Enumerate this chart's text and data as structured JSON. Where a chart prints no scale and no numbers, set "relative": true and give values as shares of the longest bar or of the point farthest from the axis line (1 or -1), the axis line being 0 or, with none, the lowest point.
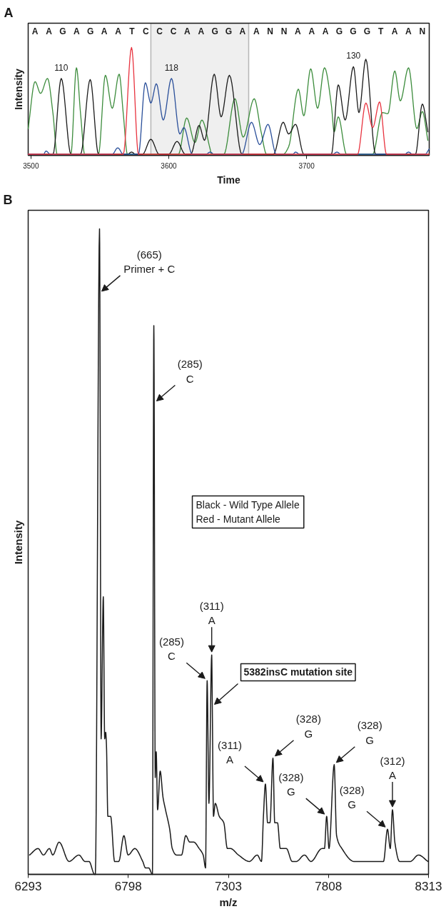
{
  "chart_data": [
    {
      "type": "line",
      "title": "A",
      "xlabel": "Time",
      "ylabel": "Intensity",
      "relative": true,
      "xlim": [
        3498,
        3789
      ],
      "xticks": [
        3500,
        3600,
        3700
      ],
      "series": [
        {
          "color": "#3c8c3c",
          "x": [
            3498,
            3503,
            3507,
            3512,
            3516,
            3519,
            3529,
            3533,
            3536,
            3539,
            3549,
            3554,
            3559,
            3564,
            3567,
            3570,
            3607,
            3613,
            3619,
            3624,
            3630,
            3631,
            3640,
            3648,
            3654,
            3662,
            3667,
            3671,
            3683,
            3687,
            3694,
            3698,
            3703,
            3708,
            3713,
            3718,
            3720,
            3723,
            3729,
            3748,
            3755,
            3759,
            3764,
            3768,
            3774,
            3780,
            3784,
            3788
          ],
          "values": [
            0.24,
            0.68,
            0.57,
            0.71,
            0.38,
            0,
            0,
            0.81,
            0.38,
            0,
            0,
            0.74,
            0.43,
            0.75,
            0.38,
            0,
            0,
            0.34,
            0.11,
            0.32,
            0.05,
            0,
            0,
            0.52,
            0.16,
            0.52,
            0.21,
            0,
            0,
            0.07,
            0.61,
            0.36,
            0.8,
            0.43,
            0.81,
            0.46,
            0.21,
            0.35,
            0,
            0,
            0.39,
            0.38,
            0.78,
            0.5,
            0.81,
            0.24,
            0.4,
            0.13
          ]
        },
        {
          "color": "#1a1a1a",
          "x": [
            3498,
            3516,
            3522,
            3529,
            3536,
            3543,
            3549,
            3570,
            3573,
            3576,
            3581,
            3587,
            3593,
            3600,
            3606,
            3612,
            3616,
            3622,
            3626,
            3633,
            3638,
            3644,
            3653,
            3676,
            3683,
            3687,
            3692,
            3698,
            3718,
            3723,
            3728,
            3734,
            3738,
            3743,
            3750,
            3779,
            3784,
            3788
          ],
          "values": [
            0,
            0,
            0.71,
            0,
            0,
            0.7,
            0,
            0,
            0.02,
            0,
            0,
            0.14,
            0,
            0,
            0.12,
            0,
            0,
            0.27,
            0.13,
            0.75,
            0.35,
            0.74,
            0,
            0,
            0.3,
            0.19,
            0.28,
            0,
            0,
            0.65,
            0.32,
            0.82,
            0.39,
            0.89,
            0,
            0,
            0.47,
            0.21
          ]
        },
        {
          "color": "#2a4f9a",
          "x": [
            3498,
            3509,
            3511,
            3514,
            3559,
            3563,
            3567,
            3578,
            3583,
            3587,
            3591,
            3596,
            3602,
            3608,
            3611,
            3617,
            3627,
            3630,
            3633,
            3653,
            3660,
            3666,
            3672,
            3678,
            3690,
            3692,
            3695,
            3719,
            3722,
            3725,
            3771,
            3774,
            3777,
            3786,
            3789
          ],
          "values": [
            0,
            0,
            0.03,
            0,
            0,
            0.06,
            0,
            0,
            0.67,
            0.48,
            0.66,
            0.32,
            0.71,
            0.19,
            0.25,
            0,
            0,
            0.02,
            0,
            0,
            0.3,
            0.09,
            0.28,
            0,
            0,
            0.02,
            0,
            0,
            0.02,
            0,
            0,
            0.02,
            0,
            0,
            0.05
          ]
        },
        {
          "color": "#e8333f",
          "x": [
            3498,
            3567,
            3573,
            3578,
            3737,
            3743,
            3748,
            3753,
            3758,
            3789
          ],
          "values": [
            0,
            0,
            1.0,
            0,
            0,
            0.48,
            0.25,
            0.49,
            0,
            0
          ]
        }
      ],
      "bands": [
        {
          "axis": "x",
          "from": 3587,
          "to": 3658,
          "color": "#222222"
        }
      ],
      "annotations": [
        {
          "text": "110",
          "x": 3522,
          "y": 0.71
        },
        {
          "text": "118",
          "x": 3602,
          "y": 0.71
        },
        {
          "text": "130",
          "x": 3734,
          "y": 0.82
        },
        "A",
        "A",
        "G",
        "A",
        "G",
        "A",
        "A",
        "T",
        "C",
        "C",
        "C",
        "A",
        "A",
        "G",
        "G",
        "A",
        "A",
        "N",
        "N",
        "A",
        "A",
        "A",
        "G",
        "G",
        "G",
        "T",
        "A",
        "A",
        "N"
      ]
    },
    {
      "type": "line",
      "title": "B",
      "xlabel": "m/z",
      "ylabel": "Intensity",
      "relative": true,
      "xlim": [
        6293,
        8313
      ],
      "xticks": [
        6293,
        6798,
        7303,
        7808,
        8313
      ],
      "x": [
        6300,
        6343,
        6370,
        6400,
        6417,
        6449,
        6499,
        6549,
        6580,
        6600,
        6628,
        6632,
        6653,
        6661,
        6672,
        6679,
        6684,
        6688,
        6695,
        6709,
        6729,
        6750,
        6776,
        6797,
        6831,
        6871,
        6885,
        6896,
        6901,
        6920,
        6927,
        6934,
        6939,
        6946,
        6959,
        6973,
        6986,
        7007,
        7020,
        7041,
        7067,
        7088,
        7108,
        7128,
        7156,
        7176,
        7188,
        7196,
        7205,
        7219,
        7222,
        7228,
        7237,
        7257,
        7280,
        7298,
        7314,
        7354,
        7409,
        7449,
        7470,
        7480,
        7490,
        7501,
        7513,
        7528,
        7537,
        7551,
        7565,
        7596,
        7625,
        7646,
        7687,
        7720,
        7775,
        7788,
        7799,
        7811,
        7837,
        7849,
        7876,
        7937,
        7991,
        8046,
        8086,
        8106,
        8120,
        8131,
        8143,
        8167,
        8194,
        8221,
        8262,
        8310
      ],
      "series": [
        {
          "color": "#1a1a1a",
          "values": [
            0.03,
            0.04,
            0.03,
            0.04,
            0.03,
            0.05,
            0.02,
            0.03,
            0.02,
            0.02,
            0.0,
            0.0,
            1.0,
            0.21,
            0.43,
            0.21,
            0.22,
            0.2,
            0.09,
            0.09,
            0.02,
            0.02,
            0.06,
            0.03,
            0.04,
            0.02,
            0.01,
            0.01,
            0.01,
            0.0,
            0.85,
            0.15,
            0.19,
            0.1,
            0.16,
            0.12,
            0.1,
            0.07,
            0.04,
            0.03,
            0.03,
            0.06,
            0.05,
            0.05,
            0.04,
            0.03,
            0.01,
            0.3,
            0.11,
            0.34,
            0.26,
            0.09,
            0.11,
            0.09,
            0.08,
            0.04,
            0.04,
            0.03,
            0.02,
            0.03,
            0.02,
            0.09,
            0.14,
            0.08,
            0.08,
            0.18,
            0.08,
            0.08,
            0.04,
            0.04,
            0.02,
            0.02,
            0.03,
            0.02,
            0.04,
            0.04,
            0.09,
            0.04,
            0.17,
            0.06,
            0.04,
            0.02,
            0.02,
            0.02,
            0.02,
            0.07,
            0.04,
            0.1,
            0.05,
            0.02,
            0.02,
            0.02,
            0.03,
            0.02
          ]
        }
      ],
      "annotations": [
        {
          "text": "(665)\nPrimer + C",
          "x": 6653,
          "y": 0.9
        },
        {
          "text": "(285)\nC",
          "x": 6930,
          "y": 0.73
        },
        {
          "text": "(285)\nC",
          "x": 7196,
          "y": 0.3
        },
        {
          "text": "(311)\nA",
          "x": 7219,
          "y": 0.34
        },
        {
          "text": "5382insC mutation site",
          "x": 7222,
          "y": 0.26
        },
        {
          "text": "(311)\nA",
          "x": 7490,
          "y": 0.14
        },
        {
          "text": "(328)\nG",
          "x": 7528,
          "y": 0.18
        },
        {
          "text": "(328)\nG",
          "x": 7799,
          "y": 0.09
        },
        {
          "text": "(328)\nG",
          "x": 7837,
          "y": 0.17
        },
        {
          "text": "(328)\nG",
          "x": 8106,
          "y": 0.07
        },
        {
          "text": "(312)\nA",
          "x": 8131,
          "y": 0.1
        },
        "Black - Wild Type Allele\nRed - Mutant Allele"
      ]
    }
  ]
}
